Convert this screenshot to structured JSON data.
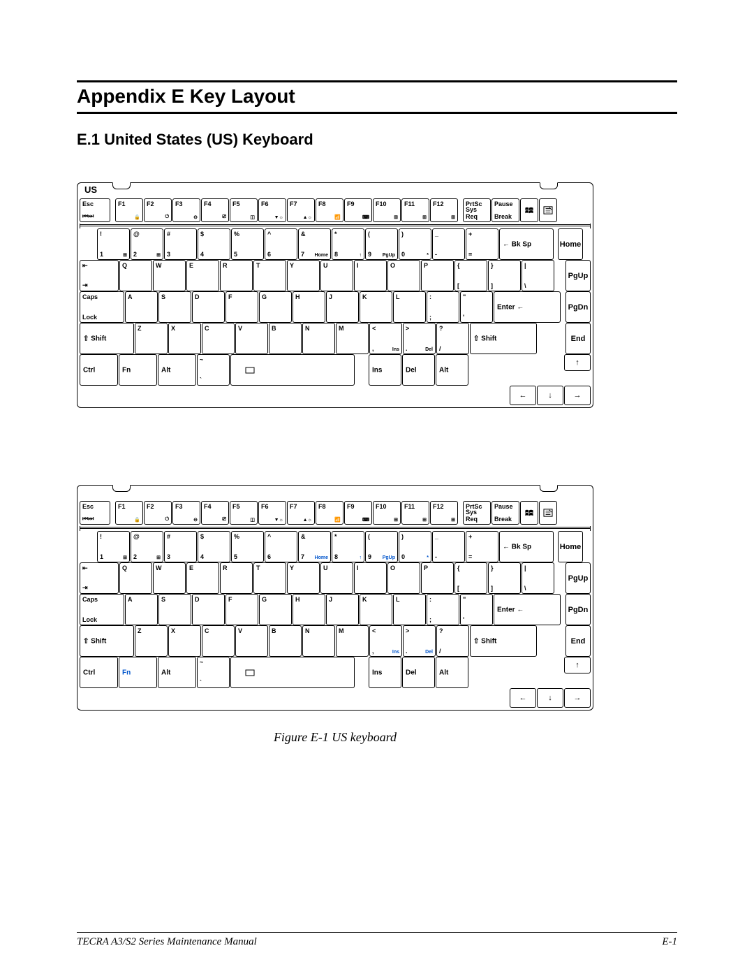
{
  "page": {
    "appendix_title": "Appendix E    Key Layout",
    "section_title": "E.1   United States (US) Keyboard",
    "figure_caption": "Figure E-1  US keyboard",
    "footer_left": "TECRA A3/S2 Series Maintenance Manual",
    "footer_right": "E-1"
  },
  "keyboard": {
    "layout_label": "US",
    "function_row": [
      {
        "tl": "Esc",
        "bl": "⏮⏭"
      },
      {
        "tl": "F1",
        "br": "🔒"
      },
      {
        "tl": "F2",
        "br": "⏻"
      },
      {
        "tl": "F3",
        "br": "⊖"
      },
      {
        "tl": "F4",
        "br": "⎚"
      },
      {
        "tl": "F5",
        "br": "◫"
      },
      {
        "tl": "F6",
        "br": "▼☼"
      },
      {
        "tl": "F7",
        "br": "▲☼"
      },
      {
        "tl": "F8",
        "br": "📶"
      },
      {
        "tl": "F9",
        "br": "⌨"
      },
      {
        "tl": "F10",
        "br": "⊞"
      },
      {
        "tl": "F11",
        "br": "⊞"
      },
      {
        "tl": "F12",
        "br": "⊞"
      },
      {
        "tl": "PrtSc",
        "bl": "Sys Req"
      },
      {
        "tl": "Pause",
        "bl": "Break"
      },
      {
        "special": "win"
      },
      {
        "special": "menu"
      }
    ],
    "num_row": [
      {
        "tl": "!",
        "bl": "1",
        "br_mini": "⊞"
      },
      {
        "tl": "@",
        "bl": "2",
        "br_mini": "⊞"
      },
      {
        "tl": "#",
        "bl": "3"
      },
      {
        "tl": "$",
        "bl": "4"
      },
      {
        "tl": "%",
        "bl": "5"
      },
      {
        "tl": "^",
        "bl": "6"
      },
      {
        "tl": "&",
        "bl": "7",
        "br": "Home"
      },
      {
        "tl": "*",
        "bl": "8",
        "br": "↑"
      },
      {
        "tl": "(",
        "bl": "9",
        "br": "PgUp"
      },
      {
        "tl": ")",
        "bl": "0",
        "br": "*"
      },
      {
        "tl": "_",
        "bl": "-"
      },
      {
        "tl": "+",
        "bl": "="
      }
    ],
    "num_row_tail": {
      "label": "← Bk Sp"
    },
    "num_row_side": "Home",
    "q_row_lead": {
      "tl": "⇤",
      "bl": "⇥"
    },
    "q_row": [
      "Q",
      "W",
      "E",
      "R",
      "T",
      "Y",
      "U",
      "I",
      "O",
      "P"
    ],
    "q_row_tail": [
      {
        "tl": "{",
        "bl": "["
      },
      {
        "tl": "}",
        "bl": "]"
      },
      {
        "tl": "|",
        "bl": "\\"
      }
    ],
    "q_row_side": "PgUp",
    "a_row_lead": "Caps Lock",
    "a_row": [
      "A",
      "S",
      "D",
      "F",
      "G",
      "H",
      "J",
      "K",
      "L"
    ],
    "a_row_tail": [
      {
        "tl": ":",
        "bl": ";"
      },
      {
        "tl": "\"",
        "bl": "'"
      }
    ],
    "a_row_enter": "Enter ←",
    "a_row_side": "PgDn",
    "z_row_lead": "⇧ Shift",
    "z_row": [
      "Z",
      "X",
      "C",
      "V",
      "B",
      "N",
      "M"
    ],
    "z_row_tail": [
      {
        "tl": "<",
        "bl": ",",
        "br": "Ins"
      },
      {
        "tl": ">",
        "bl": ".",
        "br": "Del"
      },
      {
        "tl": "?",
        "bl": "/"
      }
    ],
    "z_row_rshift": "⇧ Shift",
    "z_row_side": "End",
    "bottom_row": {
      "ctrl": "Ctrl",
      "fn": "Fn",
      "alt": "Alt",
      "tilde": {
        "tl": "~",
        "bl": "`"
      },
      "ins": "Ins",
      "del": "Del",
      "alt2": "Alt"
    },
    "arrows": {
      "up": "↑",
      "down": "↓",
      "left": "←",
      "right": "→"
    },
    "colors": {
      "key_border": "#000000",
      "background": "#ffffff",
      "accent_blue": "#0055cc"
    }
  }
}
